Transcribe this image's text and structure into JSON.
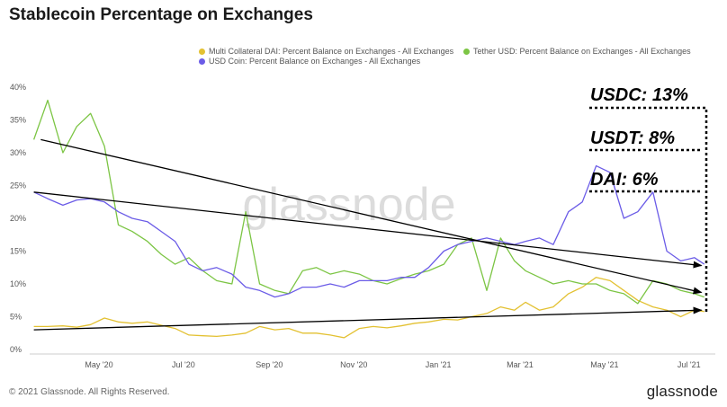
{
  "header": {
    "title": "Stablecoin Percentage on Exchanges"
  },
  "legend": [
    {
      "label": "Multi Collateral DAI: Percent Balance on Exchanges - All Exchanges",
      "color": "#e3c132"
    },
    {
      "label": "Tether USD: Percent Balance on Exchanges - All Exchanges",
      "color": "#7cc544"
    },
    {
      "label": "USD Coin: Percent Balance on Exchanges - All Exchanges",
      "color": "#6b5ce7"
    }
  ],
  "watermark": "glassnode",
  "footer": {
    "copyright": "© 2021 Glassnode. All Rights Reserved.",
    "brand": "glassnode"
  },
  "annotations": {
    "usdc": "USDC: 13%",
    "usdt": "USDT: 8%",
    "dai": "DAI: 6%"
  },
  "chart_data": {
    "type": "line",
    "ylim": [
      0,
      40
    ],
    "y_ticks": [
      "0%",
      "5%",
      "10%",
      "15%",
      "20%",
      "25%",
      "30%",
      "35%",
      "40%"
    ],
    "x_ticks": [
      "May '20",
      "Jul '20",
      "Sep '20",
      "Nov '20",
      "Jan '21",
      "Mar '21",
      "May '21",
      "Jul '21"
    ],
    "x": [
      "2020-03-15",
      "2020-03-25",
      "2020-04-05",
      "2020-04-15",
      "2020-04-25",
      "2020-05-05",
      "2020-05-15",
      "2020-05-25",
      "2020-06-05",
      "2020-06-15",
      "2020-06-25",
      "2020-07-05",
      "2020-07-15",
      "2020-07-25",
      "2020-08-05",
      "2020-08-15",
      "2020-08-25",
      "2020-09-05",
      "2020-09-15",
      "2020-09-25",
      "2020-10-05",
      "2020-10-15",
      "2020-10-25",
      "2020-11-05",
      "2020-11-15",
      "2020-11-25",
      "2020-12-05",
      "2020-12-15",
      "2020-12-25",
      "2021-01-05",
      "2021-01-15",
      "2021-01-25",
      "2021-02-05",
      "2021-02-15",
      "2021-02-25",
      "2021-03-05",
      "2021-03-15",
      "2021-03-25",
      "2021-04-05",
      "2021-04-15",
      "2021-04-25",
      "2021-05-05",
      "2021-05-15",
      "2021-05-25",
      "2021-06-05",
      "2021-06-15",
      "2021-06-25",
      "2021-07-05",
      "2021-07-12"
    ],
    "series": [
      {
        "name": "Multi Collateral DAI: Percent Balance on Exchanges - All Exchanges",
        "color": "#e3c132",
        "values": [
          3.5,
          3.5,
          3.6,
          3.4,
          3.8,
          4.8,
          4.2,
          4.0,
          4.2,
          3.7,
          3.2,
          2.2,
          2.1,
          2.0,
          2.2,
          2.5,
          3.5,
          3.0,
          3.2,
          2.5,
          2.5,
          2.2,
          1.8,
          3.2,
          3.5,
          3.3,
          3.6,
          4.0,
          4.2,
          4.6,
          4.5,
          5.0,
          5.5,
          6.5,
          6.0,
          7.2,
          6.0,
          6.5,
          8.5,
          9.5,
          11.0,
          10.5,
          9.0,
          7.5,
          6.5,
          6.0,
          5.0,
          6.0,
          5.8
        ]
      },
      {
        "name": "Tether USD: Percent Balance on Exchanges - All Exchanges",
        "color": "#7cc544",
        "values": [
          32.0,
          38.0,
          30.0,
          34.0,
          36.0,
          31.0,
          19.0,
          18.0,
          16.5,
          14.5,
          13.0,
          14.0,
          12.0,
          10.5,
          10.0,
          21.0,
          10.0,
          9.0,
          8.5,
          12.0,
          12.5,
          11.5,
          12.0,
          11.5,
          10.5,
          10.0,
          10.8,
          11.5,
          12.0,
          13.0,
          16.0,
          17.0,
          9.0,
          17.0,
          13.5,
          12.0,
          11.0,
          10.0,
          10.5,
          10.0,
          10.0,
          9.0,
          8.5,
          7.0,
          10.5,
          10.0,
          9.0,
          8.5,
          8.0
        ]
      },
      {
        "name": "USD Coin: Percent Balance on Exchanges - All Exchanges",
        "color": "#6b5ce7",
        "values": [
          24.0,
          23.0,
          22.0,
          22.8,
          23.0,
          22.5,
          21.0,
          20.0,
          19.5,
          18.0,
          16.5,
          13.0,
          12.0,
          12.5,
          11.5,
          9.5,
          9.0,
          8.0,
          8.5,
          9.5,
          9.5,
          10.0,
          9.5,
          10.5,
          10.5,
          10.5,
          11.0,
          11.0,
          12.5,
          15.0,
          16.0,
          16.5,
          17.0,
          16.5,
          16.0,
          16.5,
          17.0,
          16.0,
          21.0,
          22.5,
          28.0,
          27.0,
          20.0,
          21.0,
          24.0,
          15.0,
          13.5,
          14.0,
          13.0
        ]
      }
    ],
    "trendlines": [
      {
        "from": [
          "2020-03-20",
          32.0
        ],
        "to": [
          "2021-07-10",
          8.7
        ]
      },
      {
        "from": [
          "2020-03-15",
          24.0
        ],
        "to": [
          "2021-07-10",
          12.8
        ]
      },
      {
        "from": [
          "2020-03-15",
          3.0
        ],
        "to": [
          "2021-07-10",
          6.0
        ]
      }
    ],
    "grid": false
  }
}
